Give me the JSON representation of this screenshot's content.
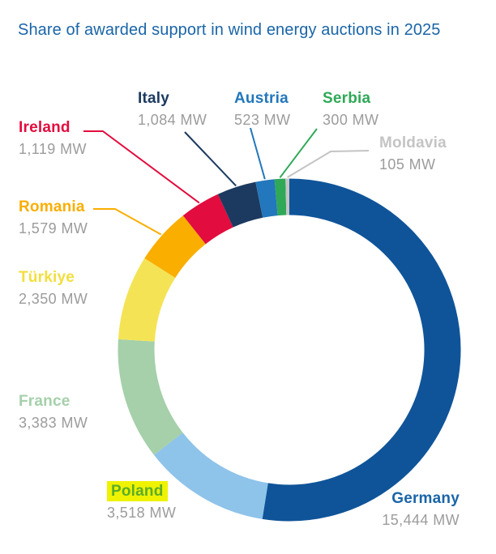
{
  "title_color": "#1A65A8",
  "value_color": "#9C9C9C",
  "background": "#FFFFFF",
  "chart_data": {
    "type": "pie",
    "style": "donut",
    "title": "Share of awarded support in wind energy auctions in 2025",
    "unit": "MW",
    "direction": "clockwise",
    "start_angle": "top",
    "legend_position": "around-chart",
    "series": [
      {
        "name": "Germany",
        "value": 15444,
        "value_label": "15,444 MW",
        "color": "#0F5499",
        "label_color": "#1A65A8"
      },
      {
        "name": "Poland",
        "value": 3518,
        "value_label": "3,518 MW",
        "color": "#8EC3EA",
        "label_color": "#5BAD2B",
        "label_highlight": "#EFF200"
      },
      {
        "name": "France",
        "value": 3383,
        "value_label": "3,383 MW",
        "color": "#A5D0AA",
        "label_color": "#A5D0AA"
      },
      {
        "name": "Türkiye",
        "value": 2350,
        "value_label": "2,350 MW",
        "color": "#F4E455",
        "label_color": "#F3DF3D"
      },
      {
        "name": "Romania",
        "value": 1579,
        "value_label": "1,579 MW",
        "color": "#FAAE00",
        "label_color": "#FAAE00"
      },
      {
        "name": "Ireland",
        "value": 1119,
        "value_label": "1,119 MW",
        "color": "#E20C3E",
        "label_color": "#E20C3E"
      },
      {
        "name": "Italy",
        "value": 1084,
        "value_label": "1,084 MW",
        "color": "#1C3A60",
        "label_color": "#1C3A60"
      },
      {
        "name": "Austria",
        "value": 523,
        "value_label": "523 MW",
        "color": "#2377BC",
        "label_color": "#2377BC"
      },
      {
        "name": "Serbia",
        "value": 300,
        "value_label": "300 MW",
        "color": "#2FA857",
        "label_color": "#2FA857"
      },
      {
        "name": "Moldavia",
        "value": 105,
        "value_label": "105 MW",
        "color": "#C5C5C5",
        "label_color": "#C4C4C4"
      }
    ]
  }
}
